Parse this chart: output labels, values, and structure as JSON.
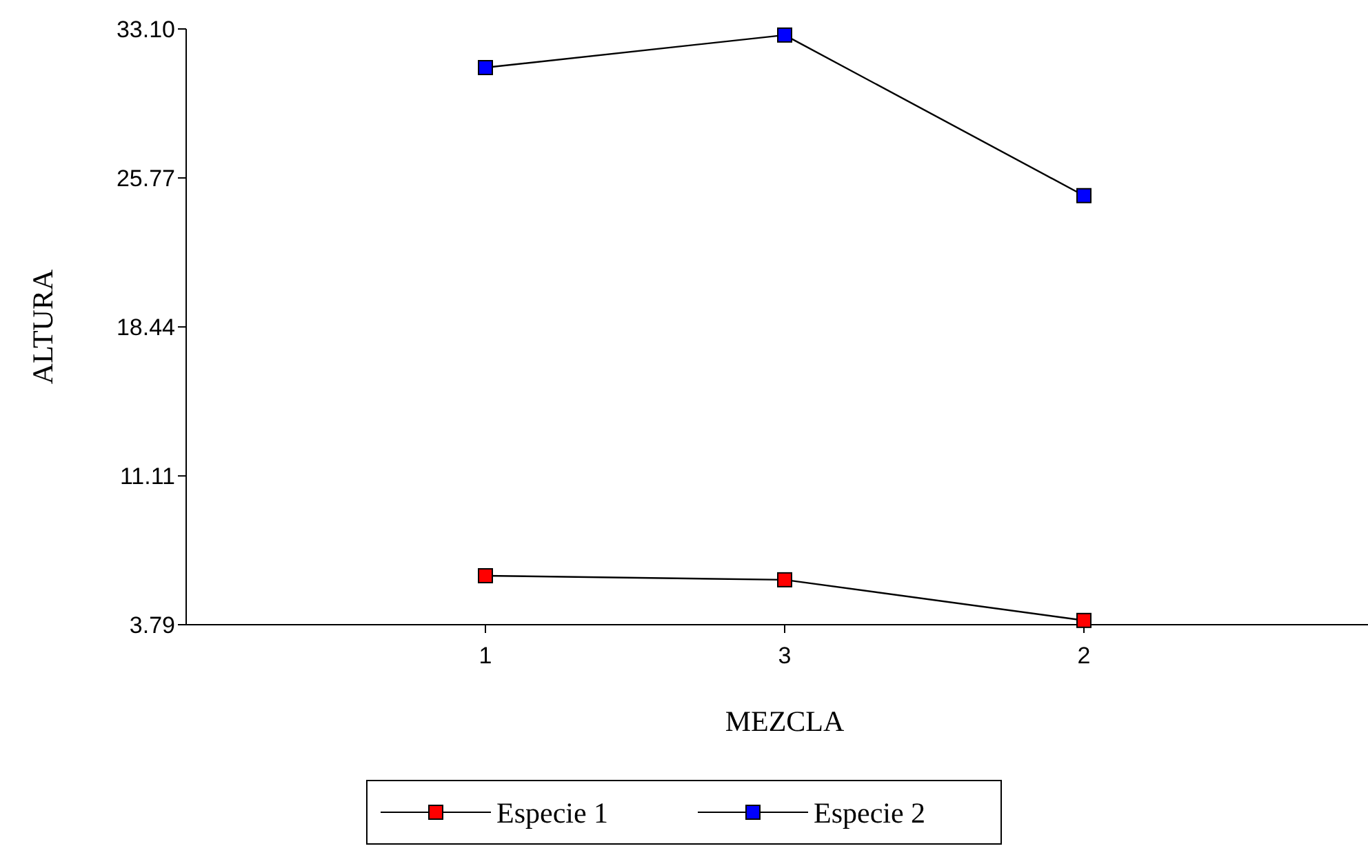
{
  "chart_data": {
    "type": "line",
    "xlabel": "MEZCLA",
    "ylabel": "ALTURA",
    "categories": [
      "1",
      "3",
      "2"
    ],
    "series": [
      {
        "name": "Especie 1",
        "color": "#ff0000",
        "values": [
          6.2,
          6.0,
          4.0
        ]
      },
      {
        "name": "Especie 2",
        "color": "#0000ff",
        "values": [
          31.2,
          32.8,
          24.9
        ]
      }
    ],
    "ylim": [
      3.79,
      33.1
    ],
    "yticks": [
      3.79,
      11.11,
      18.44,
      25.77,
      {
        "value": 33.1,
        "label": "33.10"
      }
    ],
    "grid": false,
    "legend": "bottom",
    "marker": "square",
    "line_style": "solid"
  }
}
